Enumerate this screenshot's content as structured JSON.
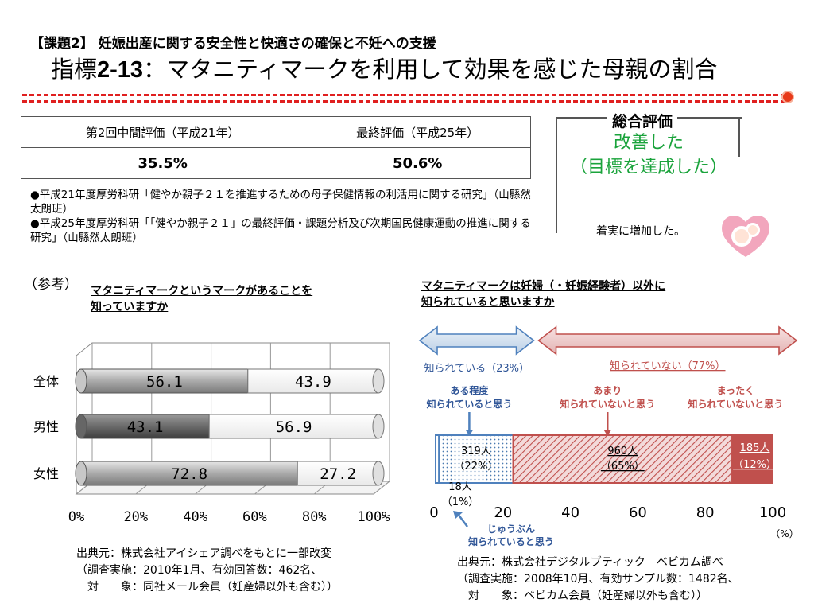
{
  "header": {
    "kadai": "【課題2】 妊娠出産に関する安全性と快適さの確保と不妊への支援",
    "title_prefix": "指標",
    "title_code": "2-13",
    "title_text": "：マタニティマークを利用して効果を感じた母親の割合"
  },
  "eval_table": {
    "headers": [
      "第2回中間評価（平成21年）",
      "最終評価（平成25年）"
    ],
    "values": [
      "35.5%",
      "50.6%"
    ]
  },
  "notes": [
    "●平成21年度厚労科研「健やか親子２１を推進するための母子保健情報の利活用に関する研究」（山縣然太朗班）",
    "●平成25年度厚労科研「「健やか親子２１」の最終評価・課題分析及び次期国民健康運動の推進に関する研究」（山縣然太朗班）"
  ],
  "sogo": {
    "title": "総合評価",
    "result_line1": "改善した",
    "result_line2": "（目標を達成した）",
    "note": "着実に増加した。"
  },
  "reference_label": "（参考）",
  "chart1": {
    "question": "マタニティマークというマークがあることを知っていますか",
    "source_lines": [
      "出典元：株式会社アイシェア調べをもとに一部改変",
      "（調査実施：2010年1月、有効回答数：462名、",
      "　対　　象：同社メール会員（妊産婦以外も含む））"
    ]
  },
  "chart2": {
    "question": "マタニティマークは妊婦（・妊娠経験者）以外に知られていると思いますか",
    "known_label": "知られている（23%）",
    "unknown_label": "知られていない（77%）",
    "cat_known_some": "ある程度\n知られていると思う",
    "cat_not_much": "あまり\n知られていないと思う",
    "cat_not_at_all": "まったく\n知られていないと思う",
    "cat_well_known": "じゅうぶん\n知られていると思う",
    "unit": "（%）",
    "source_lines": [
      "出典元：株式会社デジタルブティック　ベビカム調べ",
      "（調査実施：2008年10月、有効サンプル数：1482名、",
      "　対　　象：ベビカム会員（妊産婦以外も含む））"
    ]
  },
  "chart_data": [
    {
      "type": "bar",
      "orientation": "horizontal-stacked",
      "categories": [
        "全体",
        "男性",
        "女性"
      ],
      "series": [
        {
          "values": [
            56.1,
            43.1,
            72.8
          ],
          "color": "#b0b0b0"
        },
        {
          "values": [
            43.9,
            56.9,
            27.2
          ],
          "color": "#ffffff"
        }
      ],
      "value_labels": [
        [
          "56.1",
          "43.1",
          "72.8"
        ],
        [
          "43.9",
          "56.9",
          "27.2"
        ]
      ],
      "xlim": [
        0,
        100
      ],
      "xticks": [
        "0%",
        "20%",
        "40%",
        "60%",
        "80%",
        "100%"
      ]
    },
    {
      "type": "bar",
      "orientation": "horizontal-stacked",
      "segments": [
        {
          "count": 18,
          "pct": 1,
          "label": "18人\n（1%）",
          "color": "#ffffff"
        },
        {
          "count": 319,
          "pct": 22,
          "label": "319人\n（22%）",
          "color": "#dde8f2"
        },
        {
          "count": 960,
          "pct": 65,
          "label": "960人\n（65%）",
          "color": "#d9a0a0"
        },
        {
          "count": 185,
          "pct": 12,
          "label": "185人\n（12%）",
          "color": "#c0504d"
        }
      ],
      "xlim": [
        0,
        100
      ],
      "xticks": [
        "0",
        "20",
        "40",
        "60",
        "80",
        "100"
      ]
    }
  ]
}
